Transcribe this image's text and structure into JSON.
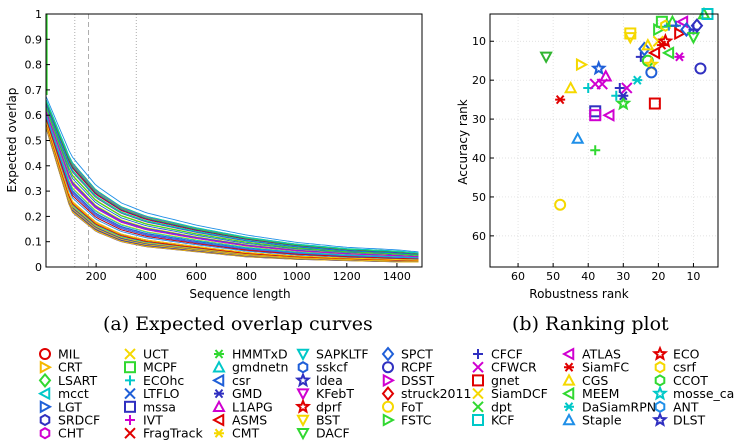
{
  "chart_data": [
    {
      "type": "line",
      "xlabel": "Sequence length",
      "ylabel": "Expected overlap",
      "xlim": [
        0,
        1500
      ],
      "ylim": [
        0,
        1
      ],
      "x_ticks": [
        200,
        400,
        600,
        800,
        1000,
        1200,
        1400
      ],
      "y_ticks": [
        0,
        0.1,
        0.2,
        0.3,
        0.4,
        0.5,
        0.6,
        0.7,
        0.8,
        0.9,
        1
      ],
      "x_tick_labels": [
        "200",
        "400",
        "600",
        "800",
        "1000",
        "1200",
        "1400"
      ],
      "y_tick_labels": [
        "0",
        "0.1",
        "0.2",
        "0.3",
        "0.4",
        "0.5",
        "0.6",
        "0.7",
        "0.8",
        "0.9",
        "1"
      ],
      "vertical_reference_lines": [
        {
          "x": 115,
          "style": "dotted"
        },
        {
          "x": 170,
          "style": "dashed"
        },
        {
          "x": 360,
          "style": "dotted"
        }
      ],
      "grid": false,
      "curve_envelope": {
        "x": [
          0,
          100,
          200,
          300,
          400,
          600,
          800,
          1000,
          1200,
          1400,
          1500
        ],
        "upper": [
          0.68,
          0.45,
          0.33,
          0.26,
          0.22,
          0.17,
          0.13,
          0.1,
          0.08,
          0.07,
          0.06
        ],
        "lower": [
          0.55,
          0.22,
          0.14,
          0.1,
          0.08,
          0.06,
          0.04,
          0.03,
          0.025,
          0.02,
          0.02
        ]
      },
      "caption": "(a) Expected overlap curves"
    },
    {
      "type": "scatter",
      "xlabel": "Robustness rank",
      "ylabel": "Accuracy rank",
      "xlim": [
        68,
        3
      ],
      "ylim": [
        68,
        3
      ],
      "x_reversed": true,
      "y_reversed": true,
      "x_ticks": [
        60,
        50,
        40,
        30,
        20,
        10
      ],
      "y_ticks": [
        10,
        20,
        30,
        40,
        50,
        60
      ],
      "x_tick_labels": [
        "60",
        "50",
        "40",
        "30",
        "20",
        "10"
      ],
      "y_tick_labels": [
        "10",
        "20",
        "30",
        "40",
        "50",
        "60"
      ],
      "points": [
        {
          "x": 48,
          "y": 52,
          "marker": "circle",
          "color": "#f5d800"
        },
        {
          "x": 45,
          "y": 22,
          "marker": "triangle-up",
          "color": "#f5d800"
        },
        {
          "x": 42,
          "y": 16,
          "marker": "triangle-right",
          "color": "#f5d800"
        },
        {
          "x": 52,
          "y": 14,
          "marker": "triangle-down",
          "color": "#31b531"
        },
        {
          "x": 48,
          "y": 25,
          "marker": "asterisk",
          "color": "#e00000"
        },
        {
          "x": 43,
          "y": 35,
          "marker": "triangle-up",
          "color": "#1f8fe8"
        },
        {
          "x": 38,
          "y": 38,
          "marker": "plus",
          "color": "#31d831"
        },
        {
          "x": 40,
          "y": 22,
          "marker": "plus",
          "color": "#00c8c8"
        },
        {
          "x": 38,
          "y": 21,
          "marker": "x",
          "color": "#d000d0"
        },
        {
          "x": 37,
          "y": 17,
          "marker": "star",
          "color": "#1f5fd8"
        },
        {
          "x": 35,
          "y": 19,
          "marker": "triangle-up",
          "color": "#d000d0"
        },
        {
          "x": 36,
          "y": 21,
          "marker": "x",
          "color": "#d000d0"
        },
        {
          "x": 34,
          "y": 29,
          "marker": "triangle-left",
          "color": "#d000d0"
        },
        {
          "x": 38,
          "y": 28,
          "marker": "square",
          "color": "#3030c0"
        },
        {
          "x": 38,
          "y": 29,
          "marker": "square",
          "color": "#d000d0"
        },
        {
          "x": 32,
          "y": 24,
          "marker": "plus",
          "color": "#00c8c8"
        },
        {
          "x": 31,
          "y": 22,
          "marker": "plus",
          "color": "#3030c0"
        },
        {
          "x": 30,
          "y": 26,
          "marker": "star",
          "color": "#31d831"
        },
        {
          "x": 30,
          "y": 24,
          "marker": "asterisk",
          "color": "#3030c0"
        },
        {
          "x": 29,
          "y": 22,
          "marker": "x",
          "color": "#d000d0"
        },
        {
          "x": 28,
          "y": 8,
          "marker": "square",
          "color": "#f5d800"
        },
        {
          "x": 28,
          "y": 9,
          "marker": "triangle-down",
          "color": "#f5d800"
        },
        {
          "x": 26,
          "y": 20,
          "marker": "asterisk",
          "color": "#00c8c8"
        },
        {
          "x": 25,
          "y": 14,
          "marker": "plus",
          "color": "#3030c0"
        },
        {
          "x": 24,
          "y": 12,
          "marker": "diamond",
          "color": "#1f5fd8"
        },
        {
          "x": 23,
          "y": 15,
          "marker": "circle",
          "color": "#31d831"
        },
        {
          "x": 23,
          "y": 11,
          "marker": "triangle-up",
          "color": "#f5d800"
        },
        {
          "x": 22,
          "y": 16,
          "marker": "star",
          "color": "#f5d800"
        },
        {
          "x": 22,
          "y": 18,
          "marker": "circle",
          "color": "#1f5fd8"
        },
        {
          "x": 21,
          "y": 13,
          "marker": "triangle-left",
          "color": "#e00000"
        },
        {
          "x": 21,
          "y": 26,
          "marker": "square",
          "color": "#e00000"
        },
        {
          "x": 20,
          "y": 10,
          "marker": "x",
          "color": "#f5d800"
        },
        {
          "x": 20,
          "y": 7,
          "marker": "triangle-right",
          "color": "#31d831"
        },
        {
          "x": 19,
          "y": 5,
          "marker": "square",
          "color": "#31d831"
        },
        {
          "x": 19,
          "y": 11,
          "marker": "asterisk",
          "color": "#e00000"
        },
        {
          "x": 18,
          "y": 10,
          "marker": "star",
          "color": "#e00000"
        },
        {
          "x": 18,
          "y": 6,
          "marker": "hexagon",
          "color": "#f5d800"
        },
        {
          "x": 17,
          "y": 6,
          "marker": "plus",
          "color": "#1f8fe8"
        },
        {
          "x": 17,
          "y": 13,
          "marker": "triangle-left",
          "color": "#31d831"
        },
        {
          "x": 16,
          "y": 5,
          "marker": "triangle-up",
          "color": "#31d831"
        },
        {
          "x": 15,
          "y": 6,
          "marker": "plus",
          "color": "#1f5fd8"
        },
        {
          "x": 14,
          "y": 8,
          "marker": "triangle-right",
          "color": "#e00000"
        },
        {
          "x": 14,
          "y": 14,
          "marker": "asterisk",
          "color": "#d000d0"
        },
        {
          "x": 13,
          "y": 5,
          "marker": "triangle-left",
          "color": "#d000d0"
        },
        {
          "x": 12,
          "y": 7,
          "marker": "diamond",
          "color": "#1f5fd8"
        },
        {
          "x": 10,
          "y": 7,
          "marker": "plus",
          "color": "#3030c0"
        },
        {
          "x": 10,
          "y": 9,
          "marker": "triangle-down",
          "color": "#31d831"
        },
        {
          "x": 9,
          "y": 6,
          "marker": "diamond",
          "color": "#3030c0"
        },
        {
          "x": 8,
          "y": 17,
          "marker": "circle",
          "color": "#3030c0"
        },
        {
          "x": 7,
          "y": 3,
          "marker": "triangle-up",
          "color": "#31d831"
        },
        {
          "x": 6,
          "y": 3,
          "marker": "square",
          "color": "#00c8c8"
        }
      ],
      "caption": "(b) Ranking plot"
    }
  ],
  "legend": [
    [
      {
        "name": "MIL",
        "marker": "circle",
        "color": "#e00000"
      },
      {
        "name": "CRT",
        "marker": "triangle-right",
        "color": "#f5b800"
      },
      {
        "name": "LSART",
        "marker": "diamond",
        "color": "#31d831"
      },
      {
        "name": "mcct",
        "marker": "triangle-left",
        "color": "#00c8c8"
      },
      {
        "name": "LGT",
        "marker": "triangle-right",
        "color": "#1f5fd8"
      },
      {
        "name": "SRDCF",
        "marker": "hexagon",
        "color": "#3030c0"
      },
      {
        "name": "CHT",
        "marker": "hexagon",
        "color": "#d000d0"
      }
    ],
    [
      {
        "name": "UCT",
        "marker": "x",
        "color": "#f5d800"
      },
      {
        "name": "MCPF",
        "marker": "square",
        "color": "#31d831"
      },
      {
        "name": "ECOhc",
        "marker": "plus",
        "color": "#00c8c8"
      },
      {
        "name": "LTFLO",
        "marker": "x",
        "color": "#1f5fd8"
      },
      {
        "name": "mssa",
        "marker": "square",
        "color": "#3030c0"
      },
      {
        "name": "IVT",
        "marker": "plus",
        "color": "#d000d0"
      },
      {
        "name": "FragTrack",
        "marker": "x",
        "color": "#e00000"
      }
    ],
    [
      {
        "name": "HMMTxD",
        "marker": "asterisk",
        "color": "#31d831"
      },
      {
        "name": "gmdnetn",
        "marker": "triangle-up",
        "color": "#00c8c8"
      },
      {
        "name": "csr",
        "marker": "triangle-left",
        "color": "#1f5fd8"
      },
      {
        "name": "GMD",
        "marker": "asterisk",
        "color": "#3030c0"
      },
      {
        "name": "L1APG",
        "marker": "triangle-up",
        "color": "#d000d0"
      },
      {
        "name": "ASMS",
        "marker": "triangle-left",
        "color": "#e00000"
      },
      {
        "name": "CMT",
        "marker": "asterisk",
        "color": "#f5d800"
      }
    ],
    [
      {
        "name": "SAPKLTF",
        "marker": "triangle-down",
        "color": "#00c8c8"
      },
      {
        "name": "sskcf",
        "marker": "hexagon",
        "color": "#1f5fd8"
      },
      {
        "name": "ldea",
        "marker": "star",
        "color": "#3030c0"
      },
      {
        "name": "KFebT",
        "marker": "triangle-down",
        "color": "#d000d0"
      },
      {
        "name": "dprf",
        "marker": "star",
        "color": "#e00000"
      },
      {
        "name": "BST",
        "marker": "triangle-down",
        "color": "#f5d800"
      },
      {
        "name": "DACF",
        "marker": "triangle-down",
        "color": "#31d831"
      }
    ],
    [
      {
        "name": "SPCT",
        "marker": "diamond",
        "color": "#1f5fd8"
      },
      {
        "name": "RCPF",
        "marker": "circle",
        "color": "#3030c0"
      },
      {
        "name": "DSST",
        "marker": "triangle-right",
        "color": "#d000d0"
      },
      {
        "name": "struck2011",
        "marker": "diamond",
        "color": "#e00000"
      },
      {
        "name": "FoT",
        "marker": "circle",
        "color": "#f5d800"
      },
      {
        "name": "FSTC",
        "marker": "triangle-right",
        "color": "#31d831"
      }
    ],
    [
      {
        "name": "CFCF",
        "marker": "plus",
        "color": "#3030c0"
      },
      {
        "name": "CFWCR",
        "marker": "x",
        "color": "#d000d0"
      },
      {
        "name": "gnet",
        "marker": "square",
        "color": "#e00000"
      },
      {
        "name": "SiamDCF",
        "marker": "x",
        "color": "#f5d800"
      },
      {
        "name": "dpt",
        "marker": "x",
        "color": "#31d831"
      },
      {
        "name": "KCF",
        "marker": "square",
        "color": "#00c8c8"
      }
    ],
    [
      {
        "name": "ATLAS",
        "marker": "triangle-left",
        "color": "#d000d0"
      },
      {
        "name": "SiamFC",
        "marker": "asterisk",
        "color": "#e00000"
      },
      {
        "name": "CGS",
        "marker": "triangle-up",
        "color": "#f5d800"
      },
      {
        "name": "MEEM",
        "marker": "triangle-left",
        "color": "#31d831"
      },
      {
        "name": "DaSiamRPN",
        "marker": "asterisk",
        "color": "#00c8c8"
      },
      {
        "name": "Staple",
        "marker": "triangle-up",
        "color": "#1f8fe8"
      }
    ],
    [
      {
        "name": "ECO",
        "marker": "star",
        "color": "#e00000"
      },
      {
        "name": "csrf",
        "marker": "hexagon",
        "color": "#f5d800"
      },
      {
        "name": "CCOT",
        "marker": "hexagon",
        "color": "#31d831"
      },
      {
        "name": "mosse_ca",
        "marker": "star",
        "color": "#00c8c8"
      },
      {
        "name": "ANT",
        "marker": "hexagon",
        "color": "#1f8fe8"
      },
      {
        "name": "DLST",
        "marker": "star",
        "color": "#3030c0"
      }
    ]
  ]
}
